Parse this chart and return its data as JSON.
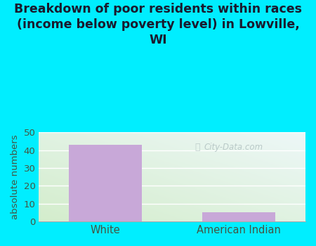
{
  "title": "Breakdown of poor residents within races\n(income below poverty level) in Lowville,\nWI",
  "categories": [
    "White",
    "American Indian"
  ],
  "values": [
    43,
    5
  ],
  "bar_color": "#c8a8d8",
  "ylabel": "absolute numbers",
  "ylim": [
    0,
    50
  ],
  "yticks": [
    0,
    10,
    20,
    30,
    40,
    50
  ],
  "background_color": "#00eeff",
  "watermark": "City-Data.com",
  "title_fontsize": 12.5,
  "title_color": "#1a1a2e",
  "grid_color": "#ccddcc",
  "tick_color": "#445544",
  "label_color": "#445544"
}
